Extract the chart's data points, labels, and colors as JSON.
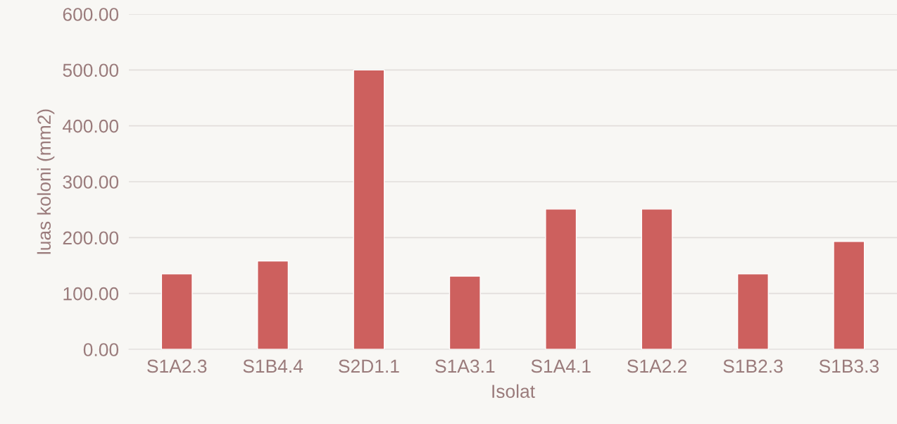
{
  "chart_data": {
    "type": "bar",
    "xlabel": "Isolat",
    "ylabel": "luas koloni (mm2)",
    "categories": [
      "S1A2.3",
      "S1B4.4",
      "S2D1.1",
      "S1A3.1",
      "S1A4.1",
      "S1A2.2",
      "S1B2.3",
      "S1B3.3"
    ],
    "values": [
      135,
      158,
      500,
      131,
      251,
      251,
      135,
      193
    ],
    "color": "#cd605e",
    "ylim": [
      0,
      600
    ],
    "yticks": [
      {
        "value": 0,
        "label": "0.00"
      },
      {
        "value": 100,
        "label": "100.00"
      },
      {
        "value": 200,
        "label": "200.00"
      },
      {
        "value": 300,
        "label": "300.00"
      },
      {
        "value": 400,
        "label": "400.00"
      },
      {
        "value": 500,
        "label": "500.00"
      },
      {
        "value": 600,
        "label": "600.00"
      }
    ],
    "grid": "y"
  }
}
